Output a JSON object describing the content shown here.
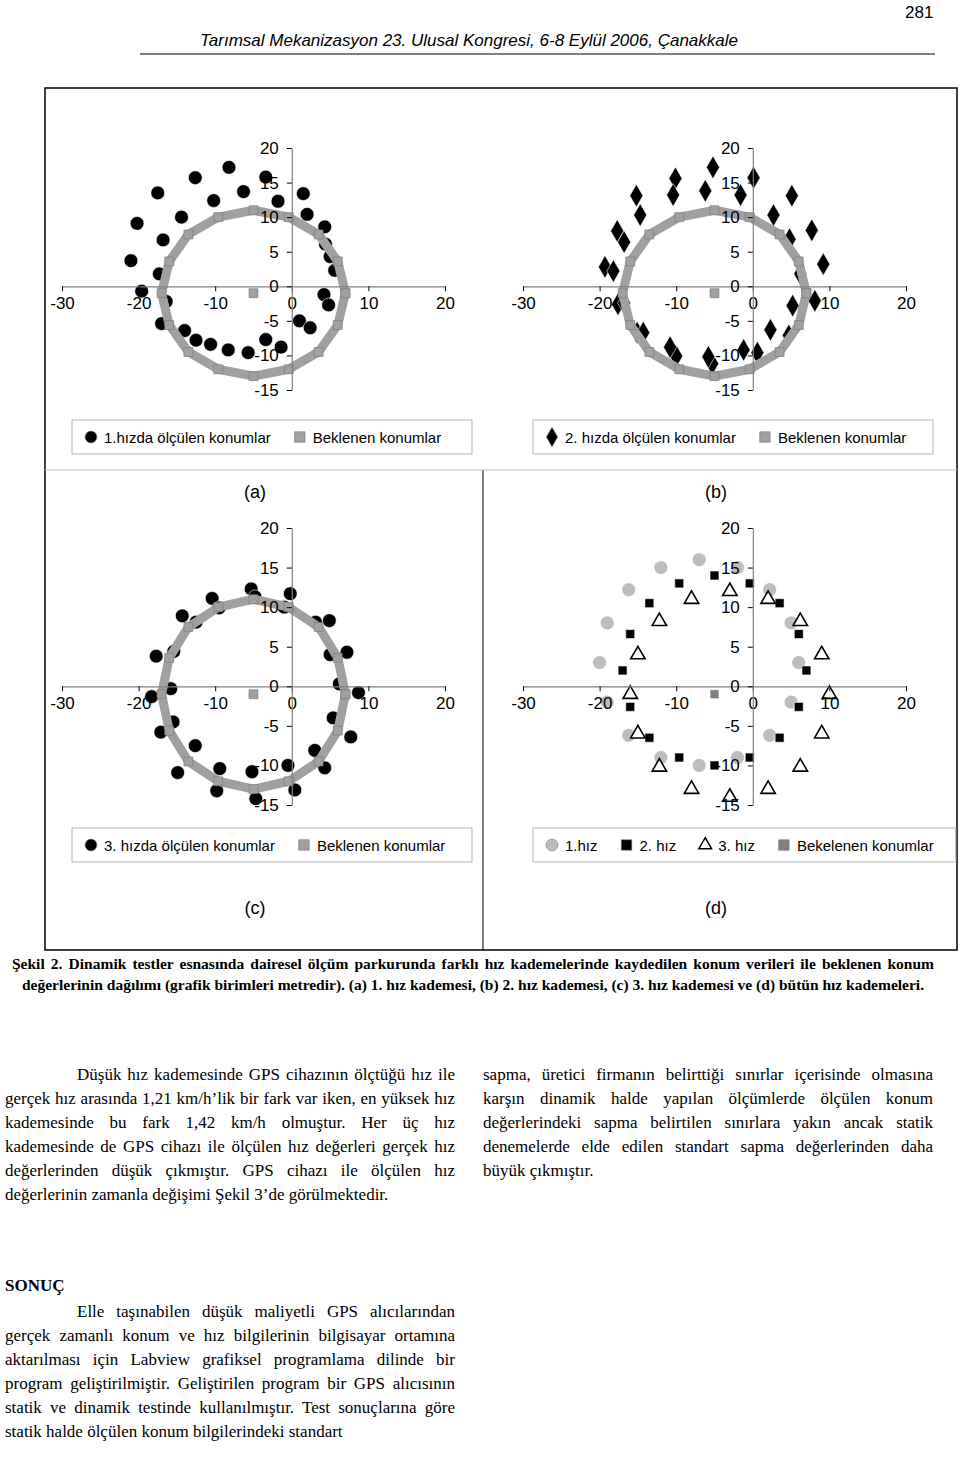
{
  "header": {
    "title": "Tarımsal Mekanizasyon 23. Ulusal Kongresi, 6-8 Eylül 2006, Çanakkale",
    "page": "281"
  },
  "chart_data": [
    {
      "type": "scatter",
      "title": "(a)",
      "legend": "bottom",
      "xlim": [
        -30,
        20
      ],
      "ylim": [
        -15,
        20
      ],
      "xticks": [
        -30,
        -20,
        -10,
        0,
        10,
        20
      ],
      "yticks": [
        -15,
        -10,
        -5,
        0,
        5,
        10,
        15,
        20
      ],
      "series": [
        {
          "name": "1.hızda ölçülen konumlar",
          "color": "#000000",
          "marker": "circle",
          "x": [
            5,
            4.3,
            1.5,
            -3.4,
            -8.2,
            -12.6,
            -17.5,
            -20.2,
            -21,
            -19.6,
            -17,
            -12.5,
            -8.3,
            -3.4,
            1,
            4.2,
            5.6,
            4.4,
            2,
            -1.8,
            -6.3,
            -10.2,
            -14.4,
            -16.8,
            -17.3,
            -16.4,
            -14,
            -10.6,
            -5.7,
            -1.4,
            2.4,
            4.8
          ],
          "values": [
            4.3,
            8.6,
            13.4,
            15.8,
            17.2,
            15.7,
            13.5,
            9.1,
            3.7,
            -0.7,
            -5.4,
            -7.8,
            -9.2,
            -7.7,
            -5,
            -1.2,
            2.3,
            6.1,
            10.4,
            12.3,
            13.7,
            12.4,
            10,
            6.7,
            1.8,
            -2.2,
            -6.4,
            -8.4,
            -9.6,
            -8.8,
            -6,
            -2.7
          ]
        },
        {
          "name": "Beklenen konumlar",
          "color": "#a0a0a0",
          "marker": "square",
          "line_style": "solid",
          "x": [
            7,
            6,
            3.5,
            -0.4,
            -5,
            -9.6,
            -13.5,
            -16,
            -17,
            -16,
            -13.5,
            -9.6,
            -5,
            -0.4,
            3.5,
            6,
            7,
            null,
            -5
          ],
          "values": [
            -1,
            3.6,
            7.5,
            10,
            11,
            10,
            7.5,
            3.6,
            -1,
            -5.6,
            -9.5,
            -12,
            -13,
            -12,
            -9.5,
            -5.6,
            -1,
            null,
            -1
          ]
        }
      ]
    },
    {
      "type": "scatter",
      "title": "(b)",
      "legend": "bottom",
      "xlim": [
        -30,
        20
      ],
      "ylim": [
        -15,
        20
      ],
      "xticks": [
        -30,
        -20,
        -10,
        0,
        10,
        20
      ],
      "yticks": [
        -15,
        -10,
        -5,
        0,
        5,
        10,
        15,
        20
      ],
      "series": [
        {
          "name": "2. hızda ölçülen konumlar",
          "color": "#000000",
          "marker": "diamond",
          "x": [
            9.2,
            7.7,
            5.1,
            0.1,
            -5.2,
            -10.1,
            -15.2,
            -17.7,
            -19.3,
            -17.6,
            -15.1,
            -10,
            -5.3,
            0.6,
            4.7,
            8.1,
            6.2,
            4.8,
            2.7,
            -1.6,
            -6.2,
            -10.4,
            -14.7,
            -16.8,
            -18.2,
            -16.8,
            -14.3,
            -10.8,
            -5.8,
            -1.2,
            2.3,
            5.2
          ],
          "values": [
            3.2,
            8.1,
            13.1,
            15.7,
            17.2,
            15.6,
            13.1,
            8,
            2.8,
            -2.6,
            -6.7,
            -10.1,
            -11.2,
            -9.6,
            -7.1,
            -2.1,
            1.8,
            6.8,
            10.3,
            13.2,
            13.8,
            13.2,
            10.3,
            6.4,
            2.2,
            -2.4,
            -6.7,
            -8.8,
            -10.2,
            -9.2,
            -6.3,
            -2.8
          ]
        },
        {
          "name": "Beklenen konumlar",
          "color": "#a0a0a0",
          "marker": "square",
          "line_style": "solid",
          "x": [
            7,
            6,
            3.5,
            -0.4,
            -5,
            -9.6,
            -13.5,
            -16,
            -17,
            -16,
            -13.5,
            -9.6,
            -5,
            -0.4,
            3.5,
            6,
            7,
            null,
            -5
          ],
          "values": [
            -1,
            3.6,
            7.5,
            10,
            11,
            10,
            7.5,
            3.6,
            -1,
            -5.6,
            -9.5,
            -12,
            -13,
            -12,
            -9.5,
            -5.6,
            -1,
            null,
            -1
          ]
        }
      ]
    },
    {
      "type": "scatter",
      "title": "(c)",
      "legend": "bottom",
      "xlim": [
        -30,
        20
      ],
      "ylim": [
        -15,
        20
      ],
      "xticks": [
        -30,
        -20,
        -10,
        0,
        10,
        20
      ],
      "yticks": [
        -15,
        -10,
        -5,
        0,
        5,
        10,
        15,
        20
      ],
      "series": [
        {
          "name": "3. hızda ölçülen konumlar",
          "color": "#000000",
          "marker": "circle",
          "x": [
            8.7,
            7.2,
            4.9,
            -0.2,
            -5.3,
            -10.4,
            -14.3,
            -17.7,
            -18.3,
            -17.1,
            -14.9,
            -9.8,
            -4.7,
            0.4,
            4.3,
            7.7,
            6.2,
            5,
            3.1,
            -1,
            -4.8,
            -9.5,
            -12.5,
            -15.4,
            -15.8,
            -15.5,
            -12.6,
            -9.4,
            -5.2,
            -0.5,
            3,
            5.4
          ],
          "values": [
            -0.8,
            4.3,
            8.3,
            11.7,
            12.3,
            11.1,
            8.9,
            3.8,
            -1.3,
            -5.8,
            -10.9,
            -13.2,
            -14.2,
            -13.1,
            -10.3,
            -6.4,
            0.3,
            4,
            8.1,
            10,
            11.3,
            9.9,
            8.1,
            4.4,
            -0.3,
            -4.5,
            -7.5,
            -10.4,
            -10.8,
            -10,
            -8.1,
            -4
          ]
        },
        {
          "name": "Beklenen konumlar",
          "color": "#a0a0a0",
          "marker": "square",
          "line_style": "solid",
          "x": [
            7,
            6,
            3.5,
            -0.4,
            -5,
            -9.6,
            -13.5,
            -16,
            -17,
            -16,
            -13.5,
            -9.6,
            -5,
            -0.4,
            3.5,
            6,
            7,
            null,
            -5
          ],
          "values": [
            -1,
            3.6,
            7.5,
            10,
            11,
            10,
            7.5,
            3.6,
            -1,
            -5.6,
            -9.5,
            -12,
            -13,
            -12,
            -9.5,
            -5.6,
            -1,
            null,
            -1
          ]
        }
      ]
    },
    {
      "type": "scatter",
      "title": "(d)",
      "legend": "bottom",
      "xlim": [
        -30,
        20
      ],
      "ylim": [
        -15,
        20
      ],
      "xticks": [
        -30,
        -20,
        -10,
        0,
        10,
        20
      ],
      "yticks": [
        -15,
        -10,
        -5,
        0,
        5,
        10,
        15,
        20
      ],
      "series": [
        {
          "name": "1.hız",
          "color": "#bdbdbd",
          "marker": "circle",
          "x": [
            6,
            5,
            2.2,
            -2,
            -7,
            -12,
            -16.2,
            -19,
            -20,
            -19,
            -16.2,
            -12,
            -7,
            -2,
            2.2,
            5
          ],
          "values": [
            3,
            8,
            12.2,
            15,
            16,
            15,
            12.2,
            8,
            3,
            -2,
            -6.2,
            -9,
            -10,
            -9,
            -6.2,
            -2
          ]
        },
        {
          "name": "2. hız",
          "color": "#000000",
          "marker": "square",
          "x": [
            7,
            6,
            3.5,
            -0.4,
            -5,
            -9.6,
            -13.5,
            -16,
            -17,
            -16,
            -13.5,
            -9.6,
            -5,
            -0.4,
            3.5,
            6
          ],
          "values": [
            2,
            6.6,
            10.5,
            13,
            14,
            13,
            10.5,
            6.6,
            2,
            -2.6,
            -6.5,
            -9,
            -10,
            -9,
            -6.5,
            -2.6
          ]
        },
        {
          "name": "3. hız",
          "color": "#000000",
          "marker": "triangle-open",
          "x": [
            10,
            9,
            6.2,
            2,
            -3,
            -8,
            -12.2,
            -15,
            -16,
            -15,
            -12.2,
            -8,
            -3,
            2,
            6.2,
            9
          ],
          "values": [
            -1,
            4,
            8.2,
            11,
            12,
            11,
            8.2,
            4,
            -1,
            -6,
            -10.2,
            -13,
            -14,
            -13,
            -10.2,
            -6
          ]
        },
        {
          "name": "Bekelenen konumlar",
          "color": "#808080",
          "marker": "square",
          "x": [
            -5
          ],
          "values": [
            -1
          ]
        }
      ]
    }
  ],
  "caption": {
    "label": "Şekil 2.",
    "text": "Dinamik testler esnasında dairesel ölçüm parkurunda farklı hız kademelerinde kaydedilen konum verileri ile beklenen konum değerlerinin dağılımı (grafik birimleri metredir). (a) 1. hız kademesi, (b) 2. hız kademesi, (c) 3. hız kademesi ve (d) bütün hız kademeleri."
  },
  "body": {
    "left": "Düşük hız kademesinde GPS cihazının ölçtüğü hız ile gerçek hız arasında 1,21 km/h’lik bir fark var iken, en yüksek hız kademesinde bu fark 1,42 km/h olmuştur. Her üç hız kademesinde de GPS cihazı ile ölçülen hız değerleri gerçek hız değerlerinden düşük çıkmıştır. GPS cihazı ile ölçülen hız değerlerinin zamanla değişimi Şekil 3’de görülmektedir.",
    "heading": "SONUÇ",
    "conclusion": "Elle taşınabilen düşük maliyetli GPS alıcılarından gerçek zamanlı konum ve hız bilgilerinin bilgisayar ortamına aktarılması için Labview grafiksel programlama dilinde bir program geliştirilmiştir. Geliştirilen program bir GPS alıcısının statik ve dinamik testinde kullanılmıştır. Test sonuçlarına göre statik halde ölçülen konum bilgilerindeki standart",
    "right": "sapma, üretici firmanın belirttiği sınırlar içerisinde olmasına karşın dinamik halde yapılan ölçümlerde ölçülen konum değerlerindeki sapma belirtilen sınırlara yakın ancak statik denemelerde elde edilen standart sapma değerlerinden daha büyük çıkmıştır."
  }
}
